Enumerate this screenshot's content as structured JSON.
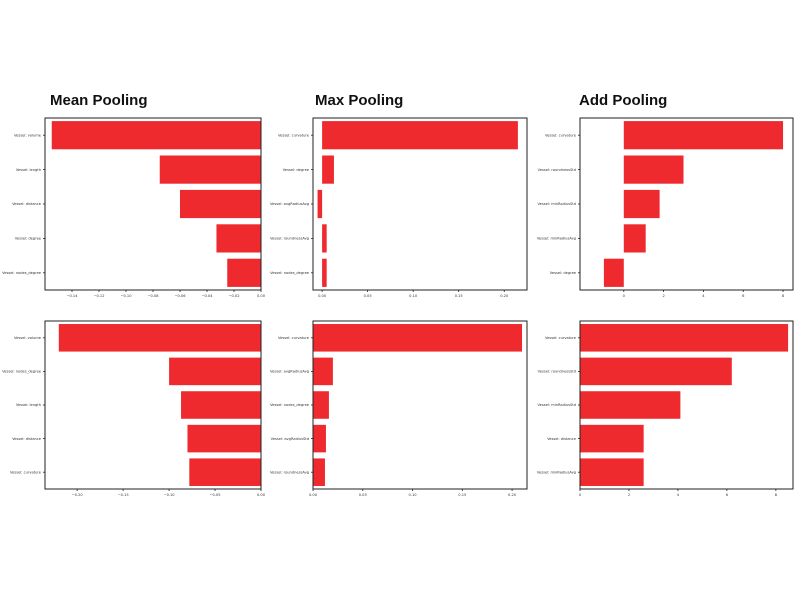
{
  "columns": [
    "Mean Pooling",
    "Max Pooling",
    "Add Pooling"
  ],
  "chart_data": [
    {
      "type": "bar",
      "orientation": "horizontal",
      "column": "Mean Pooling",
      "row": 1,
      "categories": [
        "Vessel: volume",
        "Vessel: length",
        "Vessel: distance",
        "Vessel: degree",
        "Vessel: nodes_degree"
      ],
      "values": [
        -0.155,
        -0.075,
        -0.06,
        -0.033,
        -0.025
      ],
      "xlim": [
        -0.16,
        0.0
      ],
      "xticks": [
        -0.14,
        -0.12,
        -0.1,
        -0.08,
        -0.06,
        -0.04,
        -0.02,
        0.0
      ],
      "xtick_labels": [
        "−0.14",
        "−0.12",
        "−0.10",
        "−0.08",
        "−0.06",
        "−0.04",
        "−0.02",
        "0.00"
      ]
    },
    {
      "type": "bar",
      "orientation": "horizontal",
      "column": "Max Pooling",
      "row": 1,
      "categories": [
        "Vessel: curvature",
        "Vessel: degree",
        "Vessel: avgRadiusAvg",
        "Vessel: roundnessAvg",
        "Vessel: nodes_degree"
      ],
      "values": [
        0.215,
        0.013,
        -0.005,
        0.005,
        0.005
      ],
      "xlim": [
        -0.01,
        0.225
      ],
      "xticks": [
        0.0,
        0.05,
        0.1,
        0.15,
        0.2
      ],
      "xtick_labels": [
        "0.00",
        "0.05",
        "0.10",
        "0.15",
        "0.20"
      ]
    },
    {
      "type": "bar",
      "orientation": "horizontal",
      "column": "Add Pooling",
      "row": 1,
      "categories": [
        "Vessel: curvature",
        "Vessel: roundnessStd",
        "Vessel: minRadiusStd",
        "Vessel: minRadiusAvg",
        "Vessel: degree"
      ],
      "values": [
        8.0,
        3.0,
        1.8,
        1.1,
        -1.0
      ],
      "xlim": [
        -2.2,
        8.5
      ],
      "xticks": [
        0,
        2,
        4,
        6,
        8
      ],
      "xtick_labels": [
        "0",
        "2",
        "4",
        "6",
        "8"
      ]
    },
    {
      "type": "bar",
      "orientation": "horizontal",
      "column": "Mean Pooling",
      "row": 2,
      "categories": [
        "Vessel: volume",
        "Vessel: nodes_degree",
        "Vessel: length",
        "Vessel: distance",
        "Vessel: curvature"
      ],
      "values": [
        -0.22,
        -0.1,
        -0.087,
        -0.08,
        -0.078
      ],
      "xlim": [
        -0.235,
        0.0
      ],
      "xticks": [
        -0.2,
        -0.15,
        -0.1,
        -0.05,
        0.0
      ],
      "xtick_labels": [
        "−0.20",
        "−0.15",
        "−0.10",
        "−0.05",
        "0.00"
      ]
    },
    {
      "type": "bar",
      "orientation": "horizontal",
      "column": "Max Pooling",
      "row": 2,
      "categories": [
        "Vessel: curvature",
        "Vessel: avgRadiusAvg",
        "Vessel: nodes_degree",
        "Vessel: avgRadiusStd",
        "Vessel: roundnessAvg"
      ],
      "values": [
        0.21,
        0.02,
        0.016,
        0.013,
        0.012
      ],
      "xlim": [
        0.0,
        0.215
      ],
      "xticks": [
        0.0,
        0.05,
        0.1,
        0.15,
        0.2
      ],
      "xtick_labels": [
        "0.00",
        "0.05",
        "0.10",
        "0.15",
        "0.20"
      ]
    },
    {
      "type": "bar",
      "orientation": "horizontal",
      "column": "Add Pooling",
      "row": 2,
      "categories": [
        "Vessel: curvature",
        "Vessel: roundnessStd",
        "Vessel: minRadiusStd",
        "Vessel: distance",
        "Vessel: minRadiusAvg"
      ],
      "values": [
        8.5,
        6.2,
        4.1,
        2.6,
        2.6
      ],
      "xlim": [
        0.0,
        8.7
      ],
      "xticks": [
        0,
        2,
        4,
        6,
        8
      ],
      "xtick_labels": [
        "0",
        "2",
        "4",
        "6",
        "8"
      ]
    }
  ]
}
